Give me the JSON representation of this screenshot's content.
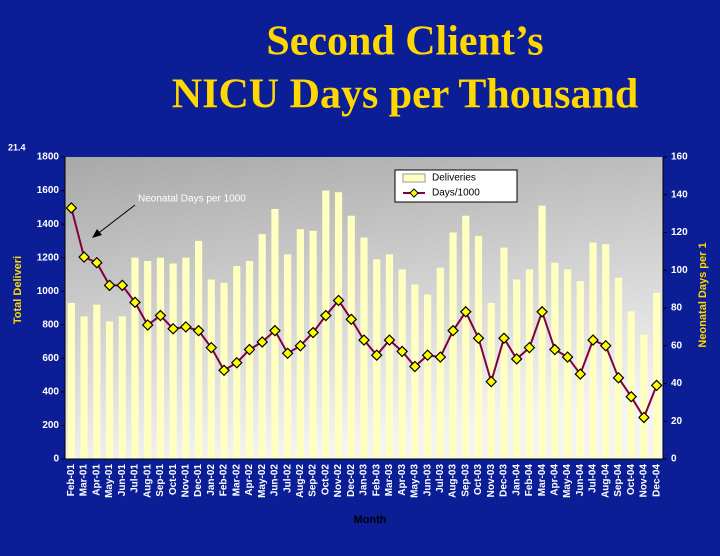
{
  "chart_data": {
    "type": "bar_line",
    "title": [
      "Second Client’s",
      "NICU Days per Thousand"
    ],
    "corner_note": "21.4",
    "annotation": "Neonatal Days per 1000",
    "xlabel": "Month",
    "ylabel": "Total Deliveri",
    "y2label": "Neonatal Days per 1",
    "categories": [
      "Feb-01",
      "Mar-01",
      "Apr-01",
      "May-01",
      "Jun-01",
      "Jul-01",
      "Aug-01",
      "Sep-01",
      "Oct-01",
      "Nov-01",
      "Dec-01",
      "Jan-02",
      "Feb-02",
      "Mar-02",
      "Apr-02",
      "May-02",
      "Jun-02",
      "Jul-02",
      "Aug-02",
      "Sep-02",
      "Oct-02",
      "Nov-02",
      "Dec-02",
      "Jan-03",
      "Feb-03",
      "Mar-03",
      "Apr-03",
      "May-03",
      "Jun-03",
      "Jul-03",
      "Aug-03",
      "Sep-03",
      "Oct-03",
      "Nov-03",
      "Dec-03",
      "Jan-04",
      "Feb-04",
      "Mar-04",
      "Apr-04",
      "May-04",
      "Jun-04",
      "Jul-04",
      "Aug-04",
      "Sep-04",
      "Oct-04",
      "Nov-04",
      "Dec-04"
    ],
    "series": [
      {
        "name": "Deliveries",
        "type": "bar",
        "color": "#ffffc0",
        "values": [
          930,
          850,
          920,
          820,
          850,
          1200,
          1180,
          1200,
          1165,
          1200,
          1300,
          1070,
          1050,
          1150,
          1180,
          1340,
          1490,
          1220,
          1370,
          1360,
          1600,
          1590,
          1450,
          1320,
          1190,
          1220,
          1130,
          1040,
          980,
          1140,
          1350,
          1450,
          1330,
          930,
          1260,
          1070,
          1130,
          1510,
          1170,
          1130,
          1060,
          1290,
          1280,
          1080,
          880,
          740,
          990
        ]
      },
      {
        "name": "Days/1000",
        "type": "line",
        "axis": "y2",
        "color": "#800040",
        "marker_color": "#ffff00",
        "values": [
          133,
          107,
          104,
          92,
          92,
          83,
          71,
          76,
          69,
          70,
          68,
          59,
          47,
          51,
          58,
          62,
          68,
          56,
          60,
          67,
          76,
          84,
          74,
          63,
          55,
          63,
          57,
          49,
          55,
          54,
          68,
          78,
          64,
          41,
          64,
          53,
          59,
          78,
          58,
          54,
          45,
          63,
          60,
          43,
          33,
          22,
          39
        ]
      }
    ],
    "ylim": [
      0,
      1800
    ],
    "yticks": [
      0,
      200,
      400,
      600,
      800,
      1000,
      1200,
      1400,
      1600,
      1800
    ],
    "y2lim": [
      0,
      160
    ],
    "y2ticks": [
      0,
      20,
      40,
      60,
      80,
      100,
      120,
      140,
      160
    ]
  }
}
